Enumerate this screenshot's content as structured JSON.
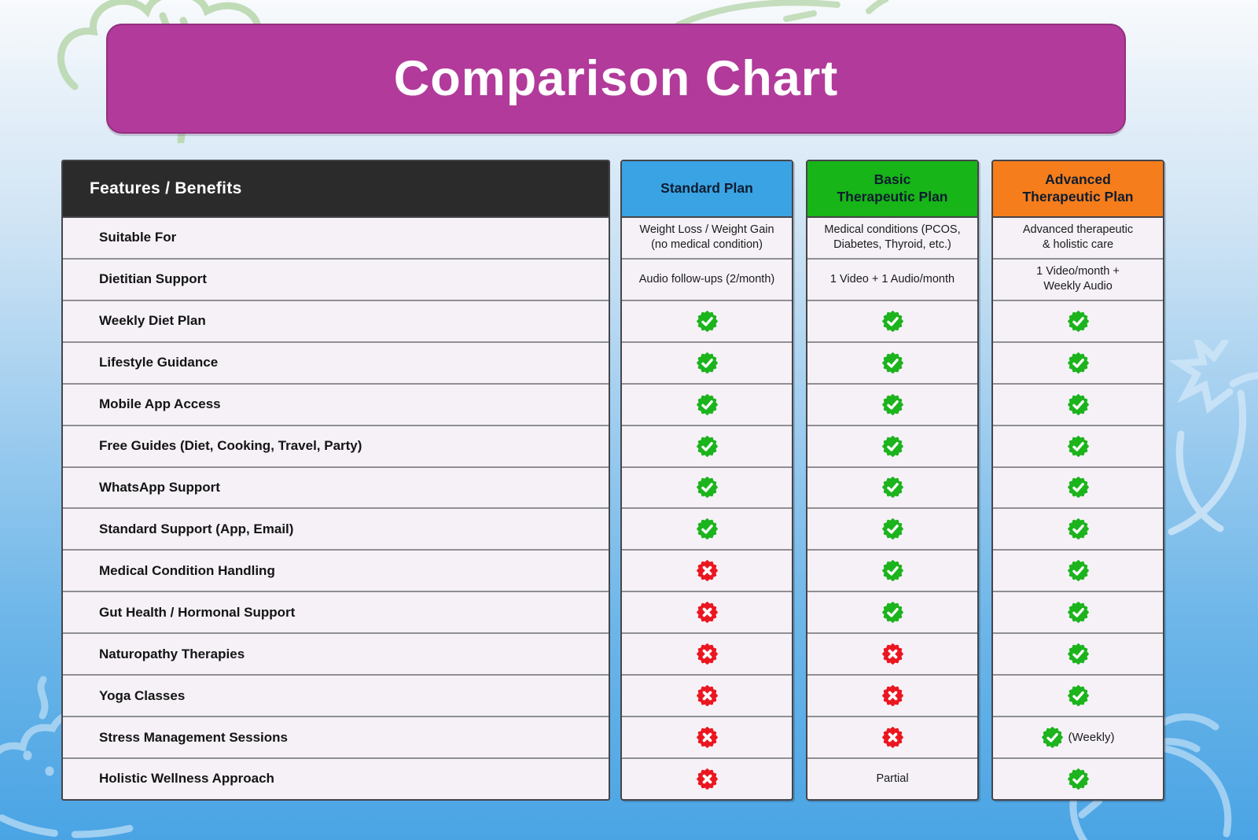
{
  "title": "Comparison Chart",
  "colors": {
    "banner_magenta": "#b23a9b",
    "features_header_bg": "#2b2b2b",
    "row_bg": "#f5f1f7",
    "standard_blue": "#3AA3E3",
    "basic_green": "#17B517",
    "advanced_orange": "#F57D1B",
    "check_green": "#1CB41C",
    "cross_red": "#EC1620"
  },
  "icons": {
    "check": "check-badge-icon",
    "cross": "cross-badge-icon"
  },
  "table": {
    "features_header": "Features / Benefits",
    "features": [
      "Suitable For",
      "Dietitian Support",
      "Weekly Diet Plan",
      "Lifestyle Guidance",
      "Mobile App Access",
      "Free Guides (Diet, Cooking, Travel, Party)",
      "WhatsApp Support",
      "Standard Support (App, Email)",
      "Medical Condition Handling",
      "Gut Health / Hormonal Support",
      "Naturopathy Therapies",
      "Yoga Classes",
      "Stress Management Sessions",
      "Holistic Wellness Approach"
    ],
    "plans": [
      {
        "name_lines": [
          "Standard Plan"
        ],
        "header_color": "#3AA3E3",
        "cells": [
          {
            "type": "text",
            "lines": [
              "Weight Loss / Weight Gain",
              "(no medical condition)"
            ]
          },
          {
            "type": "text",
            "lines": [
              "Audio follow-ups (2/month)"
            ]
          },
          {
            "type": "check"
          },
          {
            "type": "check"
          },
          {
            "type": "check"
          },
          {
            "type": "check"
          },
          {
            "type": "check"
          },
          {
            "type": "check"
          },
          {
            "type": "cross"
          },
          {
            "type": "cross"
          },
          {
            "type": "cross"
          },
          {
            "type": "cross"
          },
          {
            "type": "cross"
          },
          {
            "type": "cross"
          }
        ]
      },
      {
        "name_lines": [
          "Basic",
          "Therapeutic Plan"
        ],
        "header_color": "#17B517",
        "cells": [
          {
            "type": "text",
            "lines": [
              "Medical conditions (PCOS,",
              "Diabetes, Thyroid, etc.)"
            ]
          },
          {
            "type": "text",
            "lines": [
              "1 Video + 1 Audio/month"
            ]
          },
          {
            "type": "check"
          },
          {
            "type": "check"
          },
          {
            "type": "check"
          },
          {
            "type": "check"
          },
          {
            "type": "check"
          },
          {
            "type": "check"
          },
          {
            "type": "check"
          },
          {
            "type": "check"
          },
          {
            "type": "cross"
          },
          {
            "type": "cross"
          },
          {
            "type": "cross"
          },
          {
            "type": "text",
            "lines": [
              "Partial"
            ]
          }
        ]
      },
      {
        "name_lines": [
          "Advanced",
          "Therapeutic Plan"
        ],
        "header_color": "#F57D1B",
        "cells": [
          {
            "type": "text",
            "lines": [
              "Advanced therapeutic",
              "& holistic care"
            ]
          },
          {
            "type": "text",
            "lines": [
              "1 Video/month +",
              "Weekly Audio"
            ]
          },
          {
            "type": "check"
          },
          {
            "type": "check"
          },
          {
            "type": "check"
          },
          {
            "type": "check"
          },
          {
            "type": "check"
          },
          {
            "type": "check"
          },
          {
            "type": "check"
          },
          {
            "type": "check"
          },
          {
            "type": "check"
          },
          {
            "type": "check"
          },
          {
            "type": "check_text",
            "suffix": "(Weekly)"
          },
          {
            "type": "check"
          }
        ]
      }
    ]
  },
  "chart_data": {
    "type": "table",
    "title": "Comparison Chart",
    "categories": [
      "Suitable For",
      "Dietitian Support",
      "Weekly Diet Plan",
      "Lifestyle Guidance",
      "Mobile App Access",
      "Free Guides (Diet, Cooking, Travel, Party)",
      "WhatsApp Support",
      "Standard Support (App, Email)",
      "Medical Condition Handling",
      "Gut Health / Hormonal Support",
      "Naturopathy Therapies",
      "Yoga Classes",
      "Stress Management Sessions",
      "Holistic Wellness Approach"
    ],
    "series": [
      {
        "name": "Standard Plan",
        "values": [
          "Weight Loss / Weight Gain (no medical condition)",
          "Audio follow-ups (2/month)",
          "yes",
          "yes",
          "yes",
          "yes",
          "yes",
          "yes",
          "no",
          "no",
          "no",
          "no",
          "no",
          "no"
        ]
      },
      {
        "name": "Basic Therapeutic Plan",
        "values": [
          "Medical conditions (PCOS, Diabetes, Thyroid, etc.)",
          "1 Video + 1 Audio/month",
          "yes",
          "yes",
          "yes",
          "yes",
          "yes",
          "yes",
          "yes",
          "yes",
          "no",
          "no",
          "no",
          "Partial"
        ]
      },
      {
        "name": "Advanced Therapeutic Plan",
        "values": [
          "Advanced therapeutic & holistic care",
          "1 Video/month + Weekly Audio",
          "yes",
          "yes",
          "yes",
          "yes",
          "yes",
          "yes",
          "yes",
          "yes",
          "yes",
          "yes",
          "yes (Weekly)",
          "yes"
        ]
      }
    ]
  }
}
